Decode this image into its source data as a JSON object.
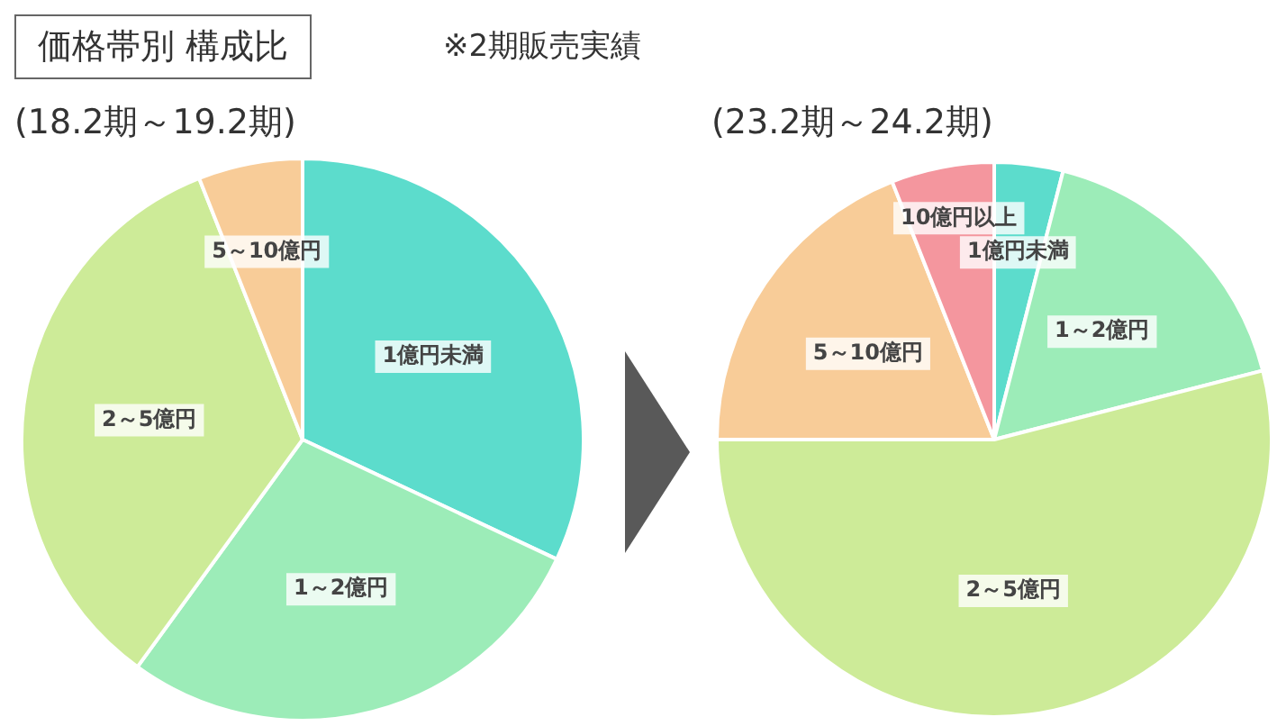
{
  "chart_data": [
    {
      "type": "pie",
      "title": "(18.2期～19.2期)",
      "annotations": [
        "価格帯別 構成比",
        "※2期販売実績"
      ],
      "categories": [
        "1億円未満",
        "1～2億円",
        "2～5億円",
        "5～10億円"
      ],
      "values": [
        32,
        28,
        34,
        6
      ],
      "colors": [
        "#5cdccc",
        "#9cecb8",
        "#cdeb98",
        "#f8cc98"
      ],
      "legend": false
    },
    {
      "type": "pie",
      "title": "(23.2期～24.2期)",
      "categories": [
        "1億円未満",
        "1～2億円",
        "2～5億円",
        "5～10億円",
        "10億円以上"
      ],
      "values": [
        4,
        17,
        54,
        19,
        6
      ],
      "colors": [
        "#5cdccc",
        "#9cecb8",
        "#cdeb98",
        "#f8cc98",
        "#f4969e"
      ],
      "legend": false
    }
  ]
}
